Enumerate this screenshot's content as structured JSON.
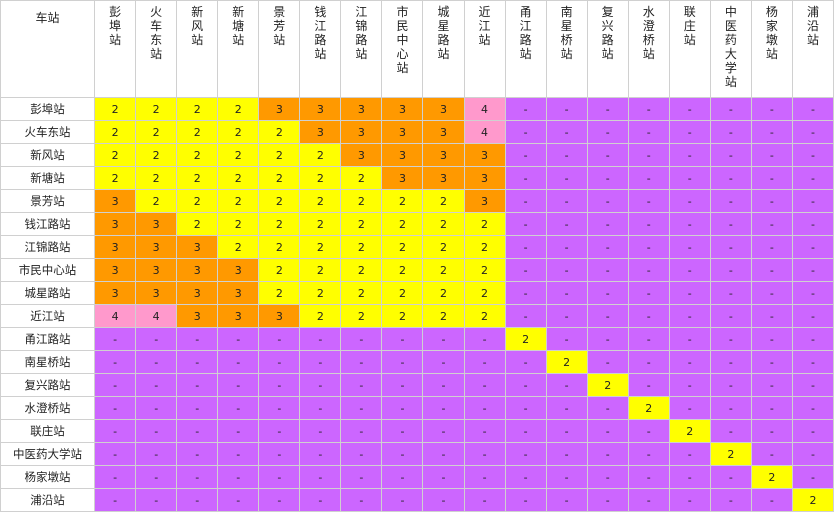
{
  "corner_label": "车站",
  "columns": [
    "彭埠站",
    "火车东站",
    "新风站",
    "新塘站",
    "景芳站",
    "钱江路站",
    "江锦路站",
    "市民中心站",
    "城星路站",
    "近江站",
    "甬江路站",
    "南星桥站",
    "复兴路站",
    "水澄桥站",
    "联庄站",
    "中医药大学站",
    "杨家墩站",
    "浦沿站"
  ],
  "rows": [
    {
      "station": "彭埠站",
      "fares": [
        "2",
        "2",
        "2",
        "2",
        "3",
        "3",
        "3",
        "3",
        "3",
        "4",
        "-",
        "-",
        "-",
        "-",
        "-",
        "-",
        "-",
        "-"
      ]
    },
    {
      "station": "火车东站",
      "fares": [
        "2",
        "2",
        "2",
        "2",
        "2",
        "3",
        "3",
        "3",
        "3",
        "4",
        "-",
        "-",
        "-",
        "-",
        "-",
        "-",
        "-",
        "-"
      ]
    },
    {
      "station": "新风站",
      "fares": [
        "2",
        "2",
        "2",
        "2",
        "2",
        "2",
        "3",
        "3",
        "3",
        "3",
        "-",
        "-",
        "-",
        "-",
        "-",
        "-",
        "-",
        "-"
      ]
    },
    {
      "station": "新塘站",
      "fares": [
        "2",
        "2",
        "2",
        "2",
        "2",
        "2",
        "2",
        "3",
        "3",
        "3",
        "-",
        "-",
        "-",
        "-",
        "-",
        "-",
        "-",
        "-"
      ]
    },
    {
      "station": "景芳站",
      "fares": [
        "3",
        "2",
        "2",
        "2",
        "2",
        "2",
        "2",
        "2",
        "2",
        "3",
        "-",
        "-",
        "-",
        "-",
        "-",
        "-",
        "-",
        "-"
      ]
    },
    {
      "station": "钱江路站",
      "fares": [
        "3",
        "3",
        "2",
        "2",
        "2",
        "2",
        "2",
        "2",
        "2",
        "2",
        "-",
        "-",
        "-",
        "-",
        "-",
        "-",
        "-",
        "-"
      ]
    },
    {
      "station": "江锦路站",
      "fares": [
        "3",
        "3",
        "3",
        "2",
        "2",
        "2",
        "2",
        "2",
        "2",
        "2",
        "-",
        "-",
        "-",
        "-",
        "-",
        "-",
        "-",
        "-"
      ]
    },
    {
      "station": "市民中心站",
      "fares": [
        "3",
        "3",
        "3",
        "3",
        "2",
        "2",
        "2",
        "2",
        "2",
        "2",
        "-",
        "-",
        "-",
        "-",
        "-",
        "-",
        "-",
        "-"
      ]
    },
    {
      "station": "城星路站",
      "fares": [
        "3",
        "3",
        "3",
        "3",
        "2",
        "2",
        "2",
        "2",
        "2",
        "2",
        "-",
        "-",
        "-",
        "-",
        "-",
        "-",
        "-",
        "-"
      ]
    },
    {
      "station": "近江站",
      "fares": [
        "4",
        "4",
        "3",
        "3",
        "3",
        "2",
        "2",
        "2",
        "2",
        "2",
        "-",
        "-",
        "-",
        "-",
        "-",
        "-",
        "-",
        "-"
      ]
    },
    {
      "station": "甬江路站",
      "fares": [
        "-",
        "-",
        "-",
        "-",
        "-",
        "-",
        "-",
        "-",
        "-",
        "-",
        "2",
        "-",
        "-",
        "-",
        "-",
        "-",
        "-",
        "-"
      ]
    },
    {
      "station": "南星桥站",
      "fares": [
        "-",
        "-",
        "-",
        "-",
        "-",
        "-",
        "-",
        "-",
        "-",
        "-",
        "-",
        "2",
        "-",
        "-",
        "-",
        "-",
        "-",
        "-"
      ]
    },
    {
      "station": "复兴路站",
      "fares": [
        "-",
        "-",
        "-",
        "-",
        "-",
        "-",
        "-",
        "-",
        "-",
        "-",
        "-",
        "-",
        "2",
        "-",
        "-",
        "-",
        "-",
        "-"
      ]
    },
    {
      "station": "水澄桥站",
      "fares": [
        "-",
        "-",
        "-",
        "-",
        "-",
        "-",
        "-",
        "-",
        "-",
        "-",
        "-",
        "-",
        "-",
        "2",
        "-",
        "-",
        "-",
        "-"
      ]
    },
    {
      "station": "联庄站",
      "fares": [
        "-",
        "-",
        "-",
        "-",
        "-",
        "-",
        "-",
        "-",
        "-",
        "-",
        "-",
        "-",
        "-",
        "-",
        "2",
        "-",
        "-",
        "-"
      ]
    },
    {
      "station": "中医药大学站",
      "fares": [
        "-",
        "-",
        "-",
        "-",
        "-",
        "-",
        "-",
        "-",
        "-",
        "-",
        "-",
        "-",
        "-",
        "-",
        "-",
        "2",
        "-",
        "-"
      ]
    },
    {
      "station": "杨家墩站",
      "fares": [
        "-",
        "-",
        "-",
        "-",
        "-",
        "-",
        "-",
        "-",
        "-",
        "-",
        "-",
        "-",
        "-",
        "-",
        "-",
        "-",
        "2",
        "-"
      ]
    },
    {
      "station": "浦沿站",
      "fares": [
        "-",
        "-",
        "-",
        "-",
        "-",
        "-",
        "-",
        "-",
        "-",
        "-",
        "-",
        "-",
        "-",
        "-",
        "-",
        "-",
        "-",
        "2"
      ]
    }
  ],
  "cell_colors": {
    "2": "#ffff00",
    "3": "#ff9900",
    "4": "#ff99cc",
    "-": "#cc66ff"
  }
}
